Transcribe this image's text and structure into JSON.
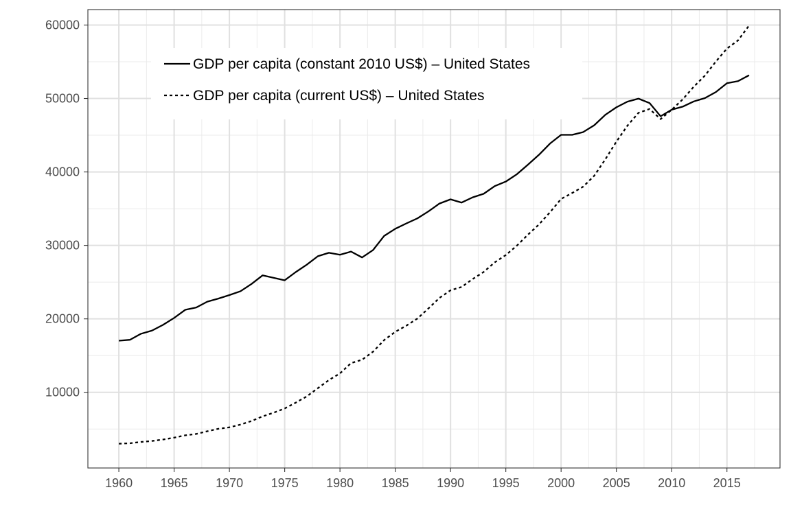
{
  "chart_data": {
    "type": "line",
    "title": "",
    "xlabel": "",
    "ylabel": "",
    "xlim": [
      1957.2,
      2019.8
    ],
    "ylim": [
      -300,
      62100
    ],
    "x_ticks": [
      1960,
      1965,
      1970,
      1975,
      1980,
      1985,
      1990,
      1995,
      2000,
      2005,
      2010,
      2015
    ],
    "y_ticks": [
      10000,
      20000,
      30000,
      40000,
      50000,
      60000
    ],
    "grid": true,
    "legend_position": "top-left",
    "x": [
      1960,
      1961,
      1962,
      1963,
      1964,
      1965,
      1966,
      1967,
      1968,
      1969,
      1970,
      1971,
      1972,
      1973,
      1974,
      1975,
      1976,
      1977,
      1978,
      1979,
      1980,
      1981,
      1982,
      1983,
      1984,
      1985,
      1986,
      1987,
      1988,
      1989,
      1990,
      1991,
      1992,
      1993,
      1994,
      1995,
      1996,
      1997,
      1998,
      1999,
      2000,
      2001,
      2002,
      2003,
      2004,
      2005,
      2006,
      2007,
      2008,
      2009,
      2010,
      2011,
      2012,
      2013,
      2014,
      2015,
      2016,
      2017
    ],
    "series": [
      {
        "name": "GDP per capita (constant 2010 US$) – United States",
        "line_style": "solid",
        "color": "#000000",
        "values": [
          17030,
          17150,
          17970,
          18410,
          19190,
          20130,
          21230,
          21550,
          22340,
          22760,
          23240,
          23760,
          24750,
          25920,
          25590,
          25250,
          26370,
          27380,
          28530,
          29000,
          28730,
          29160,
          28360,
          29380,
          31300,
          32260,
          32990,
          33680,
          34630,
          35700,
          36270,
          35830,
          36540,
          37030,
          38080,
          38690,
          39690,
          40990,
          42340,
          43870,
          45050,
          45050,
          45430,
          46360,
          47780,
          48800,
          49570,
          49980,
          49380,
          47580,
          48470,
          48890,
          49600,
          50050,
          50880,
          52080,
          52360,
          53160
        ]
      },
      {
        "name": "GDP per capita (current US$) – United States",
        "line_style": "dashed",
        "color": "#000000",
        "values": [
          3007,
          3067,
          3244,
          3375,
          3574,
          3828,
          4146,
          4336,
          4696,
          5032,
          5235,
          5609,
          6094,
          6726,
          7226,
          7801,
          8592,
          9453,
          10565,
          11674,
          12575,
          13976,
          14434,
          15544,
          17121,
          18237,
          19071,
          20039,
          21417,
          22857,
          23889,
          24342,
          25419,
          26387,
          27695,
          28691,
          29968,
          31459,
          32854,
          34516,
          36330,
          37134,
          37998,
          39490,
          41725,
          44123,
          46302,
          48050,
          48570,
          47195,
          48466,
          49883,
          51603,
          53107,
          55033,
          56803,
          57904,
          59928
        ]
      }
    ]
  }
}
